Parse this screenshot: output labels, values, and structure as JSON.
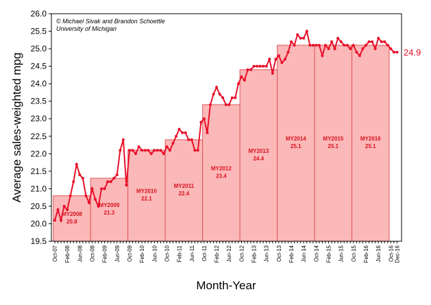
{
  "chart_data": {
    "type": "line",
    "annotations": [
      "© Michael Sivak and Brandon Schoettle",
      "University of Michigan"
    ],
    "xlabel": "Month-Year",
    "ylabel": "Average sales-weighted mpg",
    "categories": [
      "Oct-07",
      null,
      null,
      null,
      "Feb-08",
      null,
      null,
      null,
      "Jun-08",
      null,
      null,
      null,
      "Oct-08",
      null,
      null,
      null,
      "Feb-09",
      null,
      null,
      null,
      "Jun-09",
      null,
      null,
      null,
      "Oct-09",
      null,
      null,
      null,
      "Feb-10",
      null,
      null,
      null,
      "Jun-10",
      null,
      null,
      null,
      "Oct-10",
      null,
      null,
      null,
      "Feb-11",
      null,
      null,
      null,
      "Jun-11",
      null,
      null,
      null,
      "Oct-11",
      null,
      null,
      null,
      "Feb-12",
      null,
      null,
      null,
      "Jun-12",
      null,
      null,
      null,
      "Oct-12",
      null,
      null,
      null,
      "Feb-13",
      null,
      null,
      null,
      "Jun-13",
      null,
      null,
      null,
      "Oct-13",
      null,
      null,
      null,
      "Feb-14",
      null,
      null,
      null,
      "Jun-14",
      null,
      null,
      null,
      "Oct-14",
      null,
      null,
      null,
      "Feb-15",
      null,
      null,
      null,
      "Jun-15",
      null,
      null,
      null,
      "Oct-15",
      null,
      null,
      null,
      "Feb-16",
      null,
      null,
      null,
      "Jun-16",
      null,
      null,
      null,
      "Oct-16",
      null,
      "Dec-16"
    ],
    "series": [
      {
        "color": "#e8102a",
        "values": [
          20.1,
          20.4,
          20.1,
          20.5,
          20.4,
          20.8,
          21.2,
          21.7,
          21.4,
          21.3,
          20.8,
          20.6,
          21.0,
          20.7,
          20.5,
          21.0,
          21.0,
          21.2,
          21.2,
          21.3,
          21.4,
          22.1,
          22.4,
          21.1,
          22.1,
          22.1,
          22.0,
          22.2,
          22.1,
          22.1,
          22.1,
          22.0,
          22.1,
          22.1,
          22.1,
          22.0,
          22.2,
          22.1,
          22.3,
          22.5,
          22.7,
          22.6,
          22.6,
          22.4,
          22.4,
          22.1,
          22.1,
          22.9,
          23.0,
          22.6,
          23.4,
          23.7,
          23.9,
          23.7,
          23.6,
          23.4,
          23.4,
          23.6,
          23.6,
          24.0,
          24.2,
          24.1,
          24.4,
          24.4,
          24.5,
          24.5,
          24.5,
          24.5,
          24.5,
          24.7,
          24.3,
          24.7,
          24.8,
          24.6,
          24.7,
          24.9,
          25.2,
          25.1,
          25.4,
          25.3,
          25.3,
          25.5,
          25.1,
          25.1,
          25.1,
          25.1,
          24.8,
          25.1,
          25.0,
          25.2,
          25.0,
          25.3,
          25.2,
          25.1,
          25.1,
          25.0,
          25.1,
          24.9,
          24.8,
          25.0,
          25.1,
          25.2,
          25.2,
          25.0,
          25.3,
          25.2,
          25.2,
          25.1,
          25.0,
          24.9,
          24.9
        ]
      }
    ],
    "model_years": {
      "labels": [
        "MY2008",
        "MY2009",
        "MY2010",
        "MY2011",
        "MY2012",
        "MY2013",
        "MY2014",
        "MY2015",
        "MY2016"
      ],
      "values": [
        20.8,
        21.3,
        22.1,
        22.4,
        23.4,
        24.4,
        25.1,
        25.1,
        25.1
      ],
      "color": "#fbb8b8",
      "edge": "#e05555",
      "label_color": "#d8101e"
    },
    "ylim": [
      19.5,
      26.0
    ],
    "yticks": [
      19.5,
      {
        "value": 20,
        "label": "20.0"
      },
      20.5,
      {
        "value": 21,
        "label": "21.0"
      },
      21.5,
      {
        "value": 22,
        "label": "22.0"
      },
      22.5,
      {
        "value": 23,
        "label": "23.0"
      },
      23.5,
      {
        "value": 24,
        "label": "24.0"
      },
      24.5,
      {
        "value": 25,
        "label": "25.0"
      },
      25.5,
      {
        "value": 26,
        "label": "26.0"
      }
    ]
  }
}
